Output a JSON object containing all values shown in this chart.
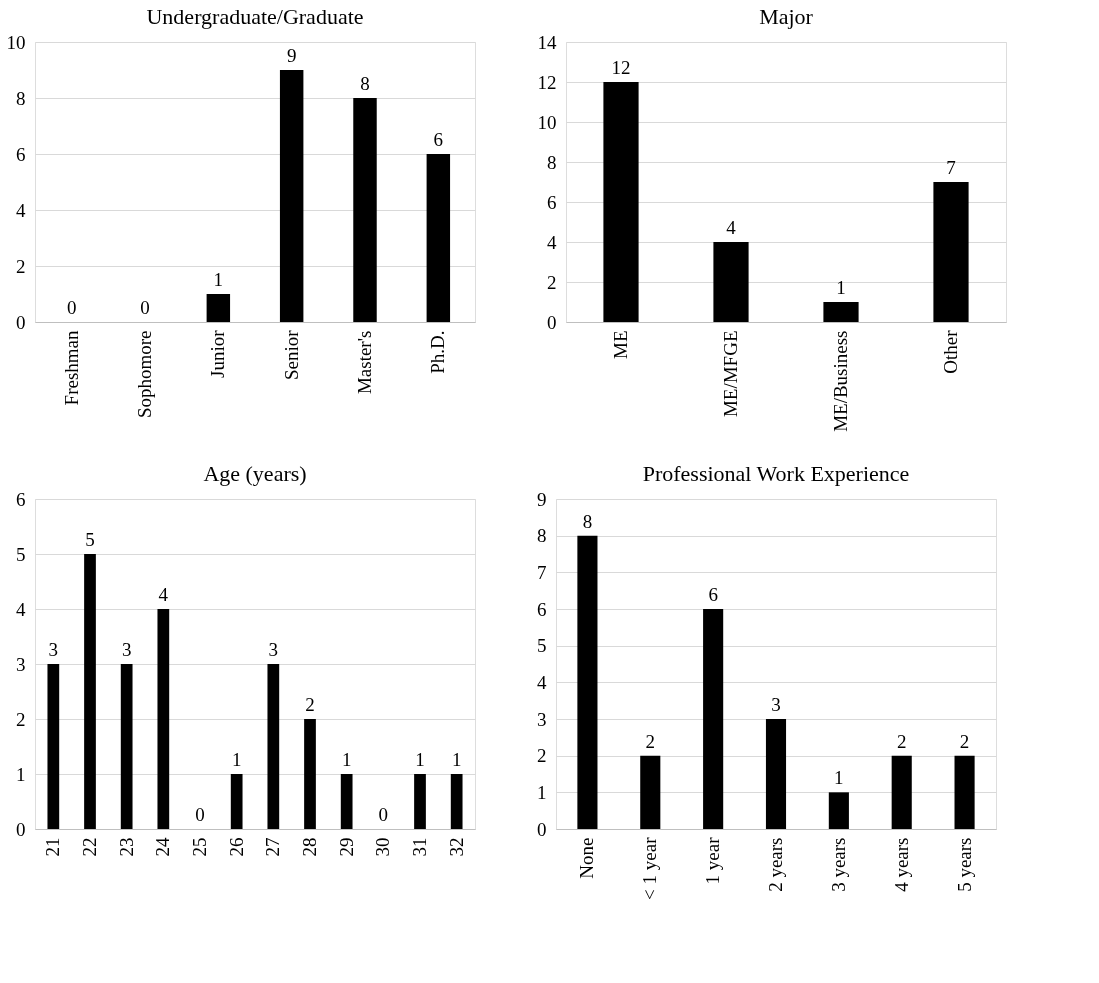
{
  "chart_data": [
    {
      "type": "bar",
      "title": "Undergraduate/Graduate",
      "categories": [
        "Freshman",
        "Sophomore",
        "Junior",
        "Senior",
        "Master's",
        "Ph.D."
      ],
      "values": [
        0,
        0,
        1,
        9,
        8,
        6
      ],
      "color": "#000000",
      "ylim": [
        0,
        10
      ],
      "yticks": [
        0,
        2,
        4,
        6,
        8,
        10
      ],
      "grid": "y",
      "data_labels": true
    },
    {
      "type": "bar",
      "title": "Major",
      "categories": [
        "ME",
        "ME/MFGE",
        "ME/Business",
        "Other"
      ],
      "values": [
        12,
        4,
        1,
        7
      ],
      "color": "#000000",
      "ylim": [
        0,
        14
      ],
      "yticks": [
        0,
        2,
        4,
        6,
        8,
        10,
        12,
        14
      ],
      "grid": "y",
      "data_labels": true
    },
    {
      "type": "bar",
      "title": "Age (years)",
      "categories": [
        "21",
        "22",
        "23",
        "24",
        "25",
        "26",
        "27",
        "28",
        "29",
        "30",
        "31",
        "32"
      ],
      "values": [
        3,
        5,
        3,
        4,
        0,
        1,
        3,
        2,
        1,
        0,
        1,
        1
      ],
      "color": "#000000",
      "ylim": [
        0,
        6
      ],
      "yticks": [
        0,
        1,
        2,
        3,
        4,
        5,
        6
      ],
      "grid": "y",
      "data_labels": true
    },
    {
      "type": "bar",
      "title": "Professional Work Experience",
      "categories": [
        "None",
        "< 1 year",
        "1 year",
        "2 years",
        "3 years",
        "4 years",
        "5 years"
      ],
      "values": [
        8,
        2,
        6,
        3,
        1,
        2,
        2
      ],
      "color": "#000000",
      "ylim": [
        0,
        9
      ],
      "yticks": [
        0,
        1,
        2,
        3,
        4,
        5,
        6,
        7,
        8,
        9
      ],
      "grid": "y",
      "data_labels": true
    }
  ]
}
